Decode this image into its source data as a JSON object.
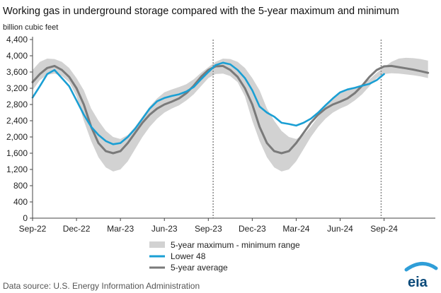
{
  "title": "Working gas in underground  storage compared with the 5-year maximum and minimum",
  "unit_label": "billion cubic feet",
  "source": "Data source:  U.S. Energy Information Administration",
  "logo_text": "eia",
  "colors": {
    "lower48": "#1a9fd4",
    "avg": "#7a7a7a",
    "band": "#d2d2d2",
    "axis": "#444444",
    "logo": "#0b4a7a"
  },
  "chart_data": {
    "type": "line",
    "title": "Working gas in underground  storage compared with the 5-year maximum and minimum",
    "ylabel": "billion cubic feet",
    "xlabel": "",
    "ylim": [
      0,
      4400
    ],
    "xlim": [
      0,
      27.5
    ],
    "yticks": [
      0,
      400,
      800,
      1200,
      1600,
      2000,
      2400,
      2800,
      3200,
      3600,
      4000,
      4400
    ],
    "ytick_labels": [
      "0",
      "400",
      "800",
      "1,200",
      "1,600",
      "2,000",
      "2,400",
      "2,800",
      "3,200",
      "3,600",
      "4,000",
      "4,400"
    ],
    "xticks": [
      0,
      3,
      6,
      9,
      12,
      15,
      18,
      21,
      24
    ],
    "xtick_labels": [
      "Sep-22",
      "Dec-22",
      "Mar-23",
      "Jun-23",
      "Sep-23",
      "Dec-23",
      "Mar-24",
      "Jun-24",
      "Sep-24"
    ],
    "vlines": [
      12.33,
      23.8
    ],
    "legend": {
      "position": "bottom-center",
      "entries": [
        "5-year maximum - minimum range",
        "Lower 48",
        "5-year average"
      ]
    },
    "series": [
      {
        "name": "5-year maximum - minimum range",
        "kind": "band",
        "x": [
          0,
          0.5,
          1,
          1.5,
          2,
          2.5,
          3,
          3.5,
          4,
          4.5,
          5,
          5.5,
          6,
          6.5,
          7,
          7.5,
          8,
          8.5,
          9,
          9.5,
          10,
          10.5,
          11,
          11.5,
          12,
          12.5,
          13,
          13.5,
          14,
          14.5,
          15,
          15.5,
          16,
          16.5,
          17,
          17.5,
          18,
          18.5,
          19,
          19.5,
          20,
          20.5,
          21,
          21.5,
          22,
          22.5,
          23,
          23.5,
          24,
          24.5,
          25,
          25.5,
          26,
          26.5,
          27
        ],
        "upper": [
          3650,
          3850,
          3930,
          3920,
          3850,
          3700,
          3450,
          3150,
          2700,
          2400,
          2150,
          2000,
          1950,
          2050,
          2250,
          2500,
          2750,
          2950,
          3100,
          3170,
          3230,
          3300,
          3420,
          3580,
          3720,
          3850,
          3930,
          3920,
          3850,
          3700,
          3450,
          3150,
          2700,
          2400,
          2150,
          2000,
          1950,
          2050,
          2250,
          2500,
          2750,
          2950,
          3100,
          3170,
          3230,
          3300,
          3420,
          3580,
          3720,
          3850,
          3930,
          3950,
          3940,
          3920,
          3880
        ],
        "lower": [
          3150,
          3400,
          3530,
          3560,
          3500,
          3350,
          3000,
          2400,
          1900,
          1500,
          1250,
          1150,
          1200,
          1400,
          1700,
          2000,
          2250,
          2450,
          2600,
          2700,
          2780,
          2900,
          3050,
          3250,
          3450,
          3550,
          3560,
          3500,
          3350,
          3000,
          2400,
          1900,
          1500,
          1250,
          1150,
          1200,
          1400,
          1700,
          2000,
          2250,
          2450,
          2600,
          2700,
          2780,
          2900,
          3050,
          3250,
          3450,
          3550,
          3570,
          3560,
          3540,
          3520,
          3490,
          3450
        ]
      },
      {
        "name": "Lower 48",
        "kind": "line",
        "x": [
          0,
          0.5,
          1,
          1.5,
          2,
          2.5,
          3,
          3.5,
          4,
          4.5,
          5,
          5.5,
          6,
          6.5,
          7,
          7.5,
          8,
          8.5,
          9,
          9.5,
          10,
          10.5,
          11,
          11.5,
          12,
          12.5,
          13,
          13.5,
          14,
          14.5,
          15,
          15.5,
          16,
          16.5,
          17,
          17.5,
          18,
          18.5,
          19,
          19.5,
          20,
          20.5,
          21,
          21.5,
          22,
          22.5,
          23,
          23.5,
          24
        ],
        "values": [
          2970,
          3250,
          3550,
          3650,
          3450,
          3250,
          2900,
          2550,
          2250,
          2050,
          1900,
          1820,
          1850,
          2000,
          2200,
          2450,
          2700,
          2880,
          2960,
          3010,
          3050,
          3120,
          3230,
          3420,
          3600,
          3770,
          3830,
          3790,
          3650,
          3450,
          3150,
          2750,
          2600,
          2500,
          2350,
          2320,
          2280,
          2350,
          2450,
          2600,
          2780,
          2950,
          3100,
          3170,
          3210,
          3260,
          3310,
          3400,
          3550
        ]
      },
      {
        "name": "5-year average",
        "kind": "line",
        "x": [
          0,
          0.5,
          1,
          1.5,
          2,
          2.5,
          3,
          3.5,
          4,
          4.5,
          5,
          5.5,
          6,
          6.5,
          7,
          7.5,
          8,
          8.5,
          9,
          9.5,
          10,
          10.5,
          11,
          11.5,
          12,
          12.5,
          13,
          13.5,
          14,
          14.5,
          15,
          15.5,
          16,
          16.5,
          17,
          17.5,
          18,
          18.5,
          19,
          19.5,
          20,
          20.5,
          21,
          21.5,
          22,
          22.5,
          23,
          23.5,
          24,
          24.5,
          25,
          25.5,
          26,
          26.5,
          27
        ],
        "values": [
          3350,
          3550,
          3700,
          3750,
          3650,
          3480,
          3200,
          2800,
          2250,
          1850,
          1650,
          1600,
          1650,
          1850,
          2100,
          2350,
          2550,
          2700,
          2800,
          2870,
          2950,
          3080,
          3260,
          3480,
          3650,
          3740,
          3750,
          3650,
          3480,
          3200,
          2800,
          2250,
          1850,
          1650,
          1600,
          1650,
          1850,
          2100,
          2350,
          2550,
          2700,
          2800,
          2870,
          2950,
          3080,
          3260,
          3480,
          3650,
          3740,
          3750,
          3720,
          3690,
          3660,
          3620,
          3580
        ]
      }
    ]
  }
}
